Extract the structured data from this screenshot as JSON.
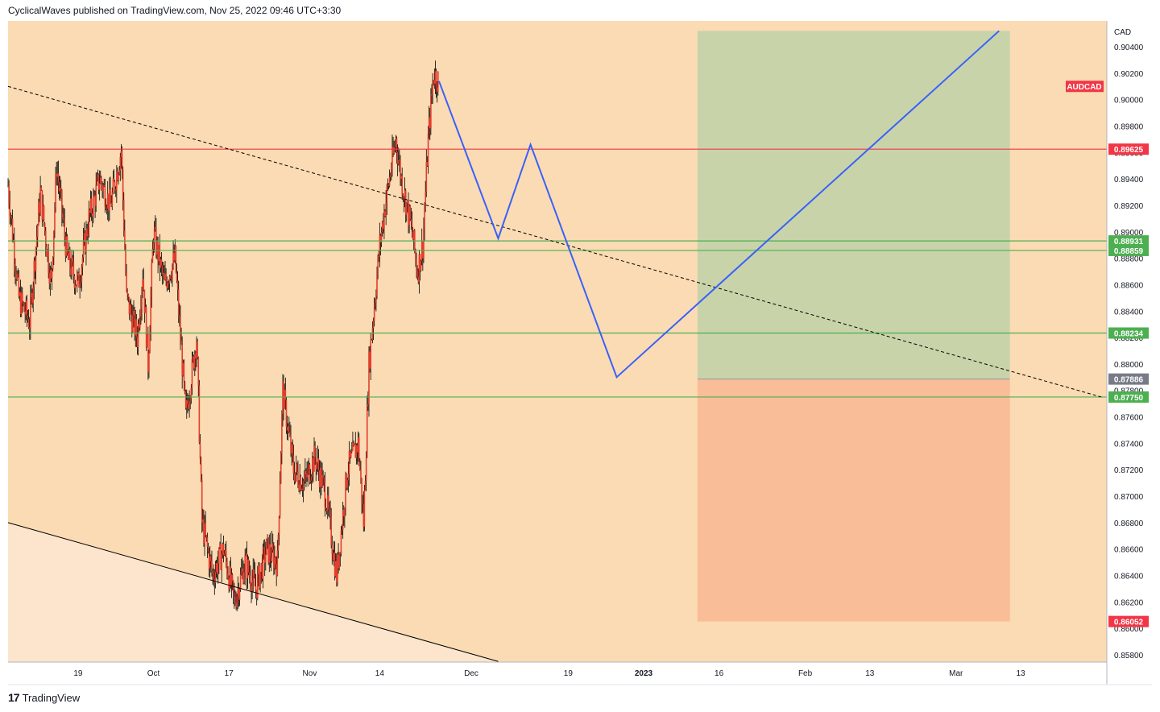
{
  "header": {
    "text": "CyclicalWaves published on TradingView.com, Nov 25, 2022 09:46 UTC+3:30"
  },
  "footer": {
    "logo_glyph": "17",
    "brand": "TradingView"
  },
  "chart_data": {
    "type": "candlestick",
    "symbol": "AUDCAD",
    "currency": "CAD",
    "ylim": [
      0.8575,
      0.9052
    ],
    "y_ticks": [
      "0.90400",
      "0.90200",
      "0.90000",
      "0.89800",
      "0.89600",
      "0.89400",
      "0.89200",
      "0.89000",
      "0.88800",
      "0.88600",
      "0.88400",
      "0.88200",
      "0.88000",
      "0.87800",
      "0.87600",
      "0.87400",
      "0.87200",
      "0.87000",
      "0.86800",
      "0.86600",
      "0.86400",
      "0.86200",
      "0.86000",
      "0.85800"
    ],
    "x_ticks": [
      {
        "label": "19",
        "date": "2022-09-19"
      },
      {
        "label": "Oct",
        "date": "2022-10-03"
      },
      {
        "label": "17",
        "date": "2022-10-17"
      },
      {
        "label": "Nov",
        "date": "2022-11-01"
      },
      {
        "label": "14",
        "date": "2022-11-14"
      },
      {
        "label": "Dec",
        "date": "2022-12-01"
      },
      {
        "label": "19",
        "date": "2022-12-19"
      },
      {
        "label": "2023",
        "date": "2023-01-02"
      },
      {
        "label": "16",
        "date": "2023-01-16"
      },
      {
        "label": "Feb",
        "date": "2023-02-01"
      },
      {
        "label": "13",
        "date": "2023-02-13"
      },
      {
        "label": "Mar",
        "date": "2023-03-01"
      },
      {
        "label": "13",
        "date": "2023-03-13"
      }
    ],
    "x_range": [
      "2022-09-06",
      "2023-03-29"
    ],
    "price_path": [
      [
        "2022-09-06",
        0.8935
      ],
      [
        "2022-09-08",
        0.885
      ],
      [
        "2022-09-10",
        0.8832
      ],
      [
        "2022-09-12",
        0.893
      ],
      [
        "2022-09-14",
        0.886
      ],
      [
        "2022-09-15",
        0.895
      ],
      [
        "2022-09-17",
        0.888
      ],
      [
        "2022-09-19",
        0.886
      ],
      [
        "2022-09-21",
        0.891
      ],
      [
        "2022-09-23",
        0.894
      ],
      [
        "2022-09-25",
        0.892
      ],
      [
        "2022-09-27",
        0.8962
      ],
      [
        "2022-09-28",
        0.885
      ],
      [
        "2022-09-30",
        0.882
      ],
      [
        "2022-10-01",
        0.887
      ],
      [
        "2022-10-02",
        0.88
      ],
      [
        "2022-10-03",
        0.89
      ],
      [
        "2022-10-05",
        0.886
      ],
      [
        "2022-10-07",
        0.888
      ],
      [
        "2022-10-09",
        0.876
      ],
      [
        "2022-10-11",
        0.882
      ],
      [
        "2022-10-12",
        0.868
      ],
      [
        "2022-10-14",
        0.864
      ],
      [
        "2022-10-16",
        0.866
      ],
      [
        "2022-10-18",
        0.862
      ],
      [
        "2022-10-20",
        0.865
      ],
      [
        "2022-10-22",
        0.863
      ],
      [
        "2022-10-24",
        0.866
      ],
      [
        "2022-10-26",
        0.865
      ],
      [
        "2022-10-27",
        0.878
      ],
      [
        "2022-10-29",
        0.872
      ],
      [
        "2022-10-31",
        0.871
      ],
      [
        "2022-11-02",
        0.873
      ],
      [
        "2022-11-04",
        0.87
      ],
      [
        "2022-11-06",
        0.864
      ],
      [
        "2022-11-08",
        0.872
      ],
      [
        "2022-11-10",
        0.874
      ],
      [
        "2022-11-11",
        0.868
      ],
      [
        "2022-11-12",
        0.88
      ],
      [
        "2022-11-14",
        0.889
      ],
      [
        "2022-11-15",
        0.892
      ],
      [
        "2022-11-17",
        0.897
      ],
      [
        "2022-11-18",
        0.894
      ],
      [
        "2022-11-20",
        0.89
      ],
      [
        "2022-11-21",
        0.887
      ],
      [
        "2022-11-22",
        0.889
      ],
      [
        "2022-11-23",
        0.897
      ],
      [
        "2022-11-24",
        0.902
      ],
      [
        "2022-11-25",
        0.9014
      ]
    ],
    "levels": [
      {
        "value": 0.89625,
        "label": "0.89625",
        "color": "#f23645",
        "style": "solid"
      },
      {
        "value": 0.88931,
        "label": "0.88931",
        "color": "#4caf50",
        "style": "solid"
      },
      {
        "value": 0.88859,
        "label": "0.88859",
        "color": "#4caf50",
        "style": "solid"
      },
      {
        "value": 0.88234,
        "label": "0.88234",
        "color": "#4caf50",
        "style": "solid"
      },
      {
        "value": 0.8775,
        "label": "0.87750",
        "color": "#4caf50",
        "style": "solid"
      }
    ],
    "price_tags": [
      {
        "label": "0.87886",
        "value": 0.87886,
        "color": "#787b86"
      },
      {
        "label": "0.86052",
        "value": 0.86052,
        "color": "#f23645"
      }
    ],
    "symbol_tag": {
      "label": "AUDCAD",
      "color": "#f23645"
    },
    "projection_path": [
      [
        "2022-11-25",
        0.9014
      ],
      [
        "2022-12-06",
        0.8895
      ],
      [
        "2022-12-12",
        0.8966
      ],
      [
        "2022-12-28",
        0.879
      ],
      [
        "2023-03-09",
        0.9052
      ]
    ],
    "trendline_dashed": [
      [
        "2022-09-06",
        0.901
      ],
      [
        "2023-03-28",
        0.8775
      ]
    ],
    "trendline_lower": [
      [
        "2022-09-06",
        0.868
      ],
      [
        "2022-12-06",
        0.8575
      ]
    ],
    "position": {
      "entry": 0.87886,
      "target": 0.9052,
      "stop": 0.86052,
      "start": "2023-01-12",
      "end": "2023-03-11"
    },
    "colors": {
      "background": "#fbdbb3",
      "lower_zone": "#fce5cc",
      "profit_zone": "#c8d3aa",
      "loss_zone": "#f9bd98",
      "candle": "#e23e2e",
      "wick": "#000000",
      "projection": "#3861fb",
      "trendline": "#000000"
    }
  }
}
